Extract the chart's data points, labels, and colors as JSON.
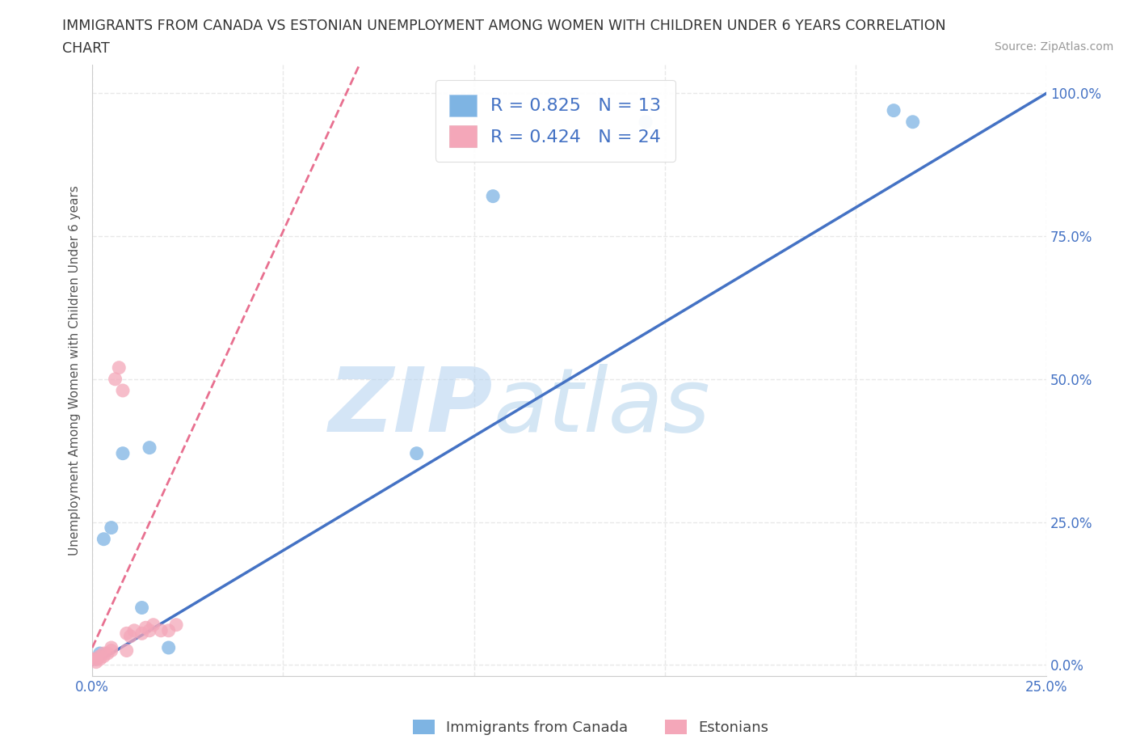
{
  "title_line1": "IMMIGRANTS FROM CANADA VS ESTONIAN UNEMPLOYMENT AMONG WOMEN WITH CHILDREN UNDER 6 YEARS CORRELATION",
  "title_line2": "CHART",
  "source": "Source: ZipAtlas.com",
  "ylabel": "Unemployment Among Women with Children Under 6 years",
  "xlim": [
    0.0,
    0.25
  ],
  "ylim": [
    -0.02,
    1.05
  ],
  "xticks": [
    0.0,
    0.05,
    0.1,
    0.15,
    0.2,
    0.25
  ],
  "xtick_labels": [
    "0.0%",
    "",
    "",
    "",
    "",
    "25.0%"
  ],
  "yticks": [
    0.0,
    0.25,
    0.5,
    0.75,
    1.0
  ],
  "ytick_labels": [
    "0.0%",
    "25.0%",
    "50.0%",
    "75.0%",
    "100.0%"
  ],
  "blue_R": 0.825,
  "blue_N": 13,
  "pink_R": 0.424,
  "pink_N": 24,
  "blue_color": "#7EB4E3",
  "blue_line_color": "#4472C4",
  "pink_color": "#F4A7B9",
  "pink_line_color": "#E87090",
  "legend_label_blue": "Immigrants from Canada",
  "legend_label_pink": "Estonians",
  "watermark_zip": "ZIP",
  "watermark_atlas": "atlas",
  "background_color": "#FFFFFF",
  "grid_color": "#E8E8E8",
  "title_color": "#333333",
  "axis_label_color": "#555555",
  "tick_color": "#4472C4",
  "legend_text_color": "#4472C4",
  "blue_scatter_x": [
    0.001,
    0.002,
    0.003,
    0.005,
    0.008,
    0.013,
    0.015,
    0.02,
    0.085,
    0.105,
    0.145,
    0.21,
    0.215
  ],
  "blue_scatter_y": [
    0.01,
    0.02,
    0.22,
    0.24,
    0.37,
    0.1,
    0.38,
    0.03,
    0.37,
    0.82,
    0.95,
    0.97,
    0.95
  ],
  "pink_scatter_x": [
    0.0,
    0.001,
    0.001,
    0.002,
    0.002,
    0.003,
    0.003,
    0.004,
    0.005,
    0.005,
    0.006,
    0.007,
    0.008,
    0.009,
    0.009,
    0.01,
    0.011,
    0.013,
    0.014,
    0.015,
    0.016,
    0.018,
    0.02,
    0.022
  ],
  "pink_scatter_y": [
    0.01,
    0.005,
    0.01,
    0.01,
    0.015,
    0.015,
    0.02,
    0.02,
    0.025,
    0.03,
    0.5,
    0.52,
    0.48,
    0.025,
    0.055,
    0.05,
    0.06,
    0.055,
    0.065,
    0.06,
    0.07,
    0.06,
    0.06,
    0.07
  ]
}
